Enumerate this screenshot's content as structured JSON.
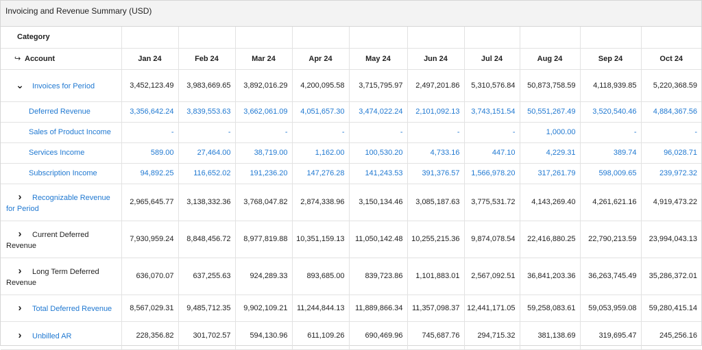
{
  "title": "Invoicing and Revenue Summary (USD)",
  "header": {
    "category_label": "Category",
    "account_label": "Account",
    "account_arrow": "↪",
    "months": [
      "Jan 24",
      "Feb 24",
      "Mar 24",
      "Apr 24",
      "May 24",
      "Jun 24",
      "Jul 24",
      "Aug 24",
      "Sep 24",
      "Oct 24"
    ]
  },
  "rows": [
    {
      "label": "Invoices for Period",
      "type": "parent",
      "expanded": true,
      "link": true,
      "values": [
        "3,452,123.49",
        "3,983,669.65",
        "3,892,016.29",
        "4,200,095.58",
        "3,715,795.97",
        "2,497,201.86",
        "5,310,576.84",
        "50,873,758.59",
        "4,118,939.85",
        "5,220,368.59"
      ]
    },
    {
      "label": "Deferred Revenue",
      "type": "child",
      "values": [
        "3,356,642.24",
        "3,839,553.63",
        "3,662,061.09",
        "4,051,657.30",
        "3,474,022.24",
        "2,101,092.13",
        "3,743,151.54",
        "50,551,267.49",
        "3,520,540.46",
        "4,884,367.56"
      ]
    },
    {
      "label": "Sales of Product Income",
      "type": "child",
      "values": [
        "-",
        "-",
        "-",
        "-",
        "-",
        "-",
        "-",
        "1,000.00",
        "-",
        "-"
      ]
    },
    {
      "label": "Services Income",
      "type": "child",
      "values": [
        "589.00",
        "27,464.00",
        "38,719.00",
        "1,162.00",
        "100,530.20",
        "4,733.16",
        "447.10",
        "4,229.31",
        "389.74",
        "96,028.71"
      ]
    },
    {
      "label": "Subscription Income",
      "type": "child",
      "values": [
        "94,892.25",
        "116,652.02",
        "191,236.20",
        "147,276.28",
        "141,243.53",
        "391,376.57",
        "1,566,978.20",
        "317,261.79",
        "598,009.65",
        "239,972.32"
      ]
    },
    {
      "label_line1": "Recognizable Revenue",
      "label_line2": "for Period",
      "type": "parent-wrap",
      "expanded": false,
      "link": true,
      "values": [
        "2,965,645.77",
        "3,138,332.36",
        "3,768,047.82",
        "2,874,338.96",
        "3,150,134.46",
        "3,085,187.63",
        "3,775,531.72",
        "4,143,269.40",
        "4,261,621.16",
        "4,919,473.22"
      ]
    },
    {
      "label_line1": "Current Deferred",
      "label_line2": "Revenue",
      "type": "parent-wrap",
      "expanded": false,
      "link": false,
      "values": [
        "7,930,959.24",
        "8,848,456.72",
        "8,977,819.88",
        "10,351,159.13",
        "11,050,142.48",
        "10,255,215.36",
        "9,874,078.54",
        "22,416,880.25",
        "22,790,213.59",
        "23,994,043.13"
      ]
    },
    {
      "label_line1": "Long Term Deferred",
      "label_line2": "Revenue",
      "type": "parent-wrap",
      "expanded": false,
      "link": false,
      "values": [
        "636,070.07",
        "637,255.63",
        "924,289.33",
        "893,685.00",
        "839,723.86",
        "1,101,883.01",
        "2,567,092.51",
        "36,841,203.36",
        "36,263,745.49",
        "35,286,372.01"
      ]
    },
    {
      "label": "Total Deferred Revenue",
      "type": "parent",
      "expanded": false,
      "link": true,
      "values": [
        "8,567,029.31",
        "9,485,712.35",
        "9,902,109.21",
        "11,244,844.13",
        "11,889,866.34",
        "11,357,098.37",
        "12,441,171.05",
        "59,258,083.61",
        "59,053,959.08",
        "59,280,415.14"
      ]
    },
    {
      "label": "Unbilled AR",
      "type": "parent",
      "expanded": false,
      "link": true,
      "values": [
        "228,356.82",
        "301,702.57",
        "594,130.96",
        "611,109.26",
        "690,469.96",
        "745,687.76",
        "294,715.32",
        "381,138.69",
        "319,695.47",
        "245,256.16"
      ]
    }
  ],
  "icons": {
    "expanded": "chevron-down-icon",
    "collapsed": "chevron-right-icon"
  },
  "colors": {
    "link": "#1f78d1",
    "header_bg": "#f3f3f3",
    "border": "#e2e2e2"
  }
}
